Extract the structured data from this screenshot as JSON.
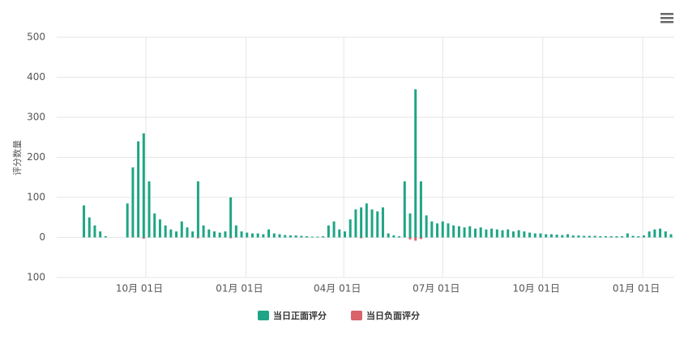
{
  "chart_data": {
    "type": "bar",
    "y_label": "评分数量",
    "xlim": [
      0,
      568
    ],
    "xticks": [
      {
        "value": 82,
        "label": "10月 01日"
      },
      {
        "value": 174,
        "label": "01月 01日"
      },
      {
        "value": 264,
        "label": "04月 01日"
      },
      {
        "value": 355,
        "label": "07月 01日"
      },
      {
        "value": 447,
        "label": "10月 01日"
      },
      {
        "value": 539,
        "label": "01月 01日"
      }
    ],
    "ylim": [
      -100,
      500
    ],
    "yticks": [
      500,
      400,
      300,
      200,
      100,
      0,
      {
        "value": -100,
        "label": "100"
      }
    ],
    "grid": true,
    "legend": "bottom",
    "series": [
      {
        "name": "当日正面评分",
        "color": "#1fa586",
        "x": [
          25,
          30,
          35,
          40,
          45,
          50,
          55,
          60,
          65,
          70,
          75,
          80,
          85,
          90,
          95,
          100,
          105,
          110,
          115,
          120,
          125,
          130,
          135,
          140,
          145,
          150,
          155,
          160,
          165,
          170,
          175,
          180,
          185,
          190,
          195,
          200,
          205,
          210,
          215,
          220,
          225,
          230,
          235,
          240,
          245,
          250,
          255,
          260,
          265,
          270,
          275,
          280,
          285,
          290,
          295,
          300,
          305,
          310,
          315,
          320,
          325,
          330,
          335,
          340,
          345,
          350,
          355,
          360,
          365,
          370,
          375,
          380,
          385,
          390,
          395,
          400,
          405,
          410,
          415,
          420,
          425,
          430,
          435,
          440,
          445,
          450,
          455,
          460,
          465,
          470,
          475,
          480,
          485,
          490,
          495,
          500,
          505,
          510,
          515,
          520,
          525,
          530,
          535,
          540,
          545,
          550,
          555,
          560,
          565
        ],
        "values": [
          80,
          50,
          30,
          15,
          3,
          0,
          0,
          0,
          85,
          175,
          240,
          260,
          140,
          60,
          45,
          30,
          20,
          15,
          40,
          25,
          15,
          140,
          30,
          20,
          15,
          12,
          15,
          100,
          30,
          15,
          12,
          10,
          10,
          8,
          20,
          10,
          8,
          6,
          5,
          5,
          4,
          3,
          2,
          2,
          3,
          30,
          40,
          20,
          15,
          45,
          70,
          75,
          85,
          70,
          65,
          75,
          10,
          5,
          3,
          140,
          60,
          370,
          140,
          55,
          40,
          35,
          40,
          35,
          30,
          28,
          25,
          28,
          22,
          25,
          20,
          22,
          20,
          18,
          20,
          15,
          18,
          15,
          12,
          10,
          10,
          8,
          8,
          7,
          6,
          8,
          5,
          5,
          4,
          4,
          4,
          3,
          3,
          3,
          3,
          3,
          10,
          4,
          3,
          5,
          15,
          20,
          22,
          15,
          8
        ]
      },
      {
        "name": "当日负面评分",
        "color": "#d9626b",
        "x": [
          80,
          130,
          160,
          280,
          325,
          330,
          335
        ],
        "values": [
          -3,
          -2,
          -2,
          -2,
          -5,
          -8,
          -4
        ]
      }
    ]
  }
}
